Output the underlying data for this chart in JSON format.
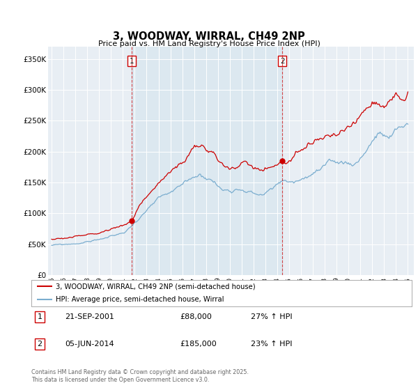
{
  "title": "3, WOODWAY, WIRRAL, CH49 2NP",
  "subtitle": "Price paid vs. HM Land Registry's House Price Index (HPI)",
  "ylim": [
    0,
    370000
  ],
  "xlim_start": 1994.7,
  "xlim_end": 2025.5,
  "purchase1": {
    "date_num": 2001.72,
    "price": 88000,
    "label": "1",
    "date_str": "21-SEP-2001",
    "price_str": "£88,000",
    "pct": "27% ↑ HPI"
  },
  "purchase2": {
    "date_num": 2014.43,
    "price": 185000,
    "label": "2",
    "date_str": "05-JUN-2014",
    "price_str": "£185,000",
    "pct": "23% ↑ HPI"
  },
  "legend_line1": "3, WOODWAY, WIRRAL, CH49 2NP (semi-detached house)",
  "legend_line2": "HPI: Average price, semi-detached house, Wirral",
  "footer": "Contains HM Land Registry data © Crown copyright and database right 2025.\nThis data is licensed under the Open Government Licence v3.0.",
  "red_color": "#cc0000",
  "blue_color": "#7aadcf",
  "shade_color": "#dce8f0",
  "background_color": "#e8eef4",
  "grid_color": "#ffffff"
}
